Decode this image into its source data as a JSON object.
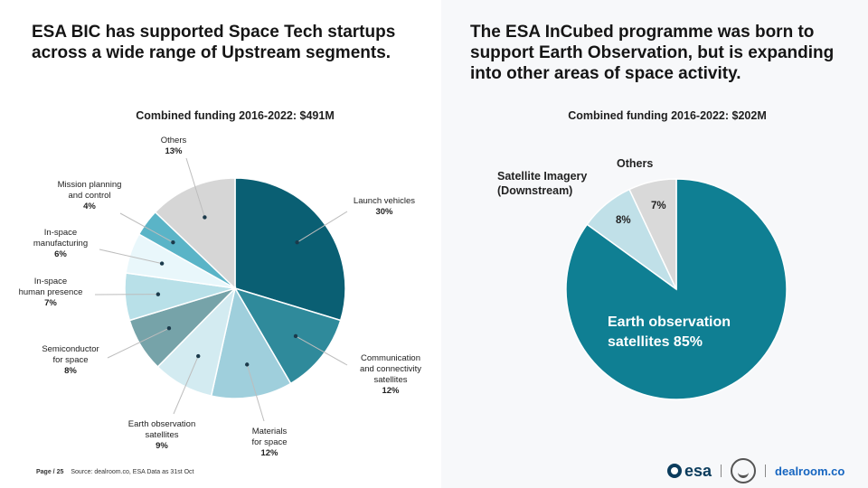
{
  "left": {
    "headline_line1": "ESA BIC has supported Space Tech startups",
    "headline_line2": "across a wide range of Upstream segments."
  },
  "right": {
    "headline_line1": "The ESA InCubed programme was born to",
    "headline_line2": "support Earth Observation, but is expanding",
    "headline_line3": "into other areas of space activity."
  },
  "footer": {
    "page": "Page / 25",
    "source": "Source: dealroom.co, ESA  Data as 31st Oct"
  },
  "logos": {
    "esa": "esa",
    "dealroom": "dealroom.co"
  },
  "chart_data": [
    {
      "type": "pie",
      "title": "Combined funding 2016-2022: $491M",
      "slices": [
        {
          "label_line1": "Launch vehicles",
          "label_line2": "",
          "label_line3": "",
          "value": 30,
          "pct": "30%",
          "color": "#0a5f73"
        },
        {
          "label_line1": "Communication",
          "label_line2": "and connectivity",
          "label_line3": "satellites",
          "value": 12,
          "pct": "12%",
          "color": "#2f8a9b"
        },
        {
          "label_line1": "Materials",
          "label_line2": "for space",
          "label_line3": "",
          "value": 12,
          "pct": "12%",
          "color": "#9fcfdc"
        },
        {
          "label_line1": "Earth observation",
          "label_line2": "satellites",
          "label_line3": "",
          "value": 9,
          "pct": "9%",
          "color": "#d3ebf1"
        },
        {
          "label_line1": "Semiconductor",
          "label_line2": "for space",
          "label_line3": "",
          "value": 8,
          "pct": "8%",
          "color": "#76a3a9"
        },
        {
          "label_line1": "In-space",
          "label_line2": "human presence",
          "label_line3": "",
          "value": 7,
          "pct": "7%",
          "color": "#b8e0e8"
        },
        {
          "label_line1": "In-space",
          "label_line2": "manufacturing",
          "label_line3": "",
          "value": 6,
          "pct": "6%",
          "color": "#e9f7fb"
        },
        {
          "label_line1": "Mission planning",
          "label_line2": "and control",
          "label_line3": "",
          "value": 4,
          "pct": "4%",
          "color": "#5ab4c7"
        },
        {
          "label_line1": "Others",
          "label_line2": "",
          "label_line3": "",
          "value": 13,
          "pct": "13%",
          "color": "#d6d6d6"
        }
      ]
    },
    {
      "type": "pie",
      "title": "Combined funding 2016-2022: $202M",
      "slices": [
        {
          "label_line1": "Earth observation",
          "label_line2": "satellites 85%",
          "value": 85,
          "pct": "",
          "color": "#0f7f93"
        },
        {
          "label_line1": "Satellite Imagery",
          "label_line2": "(Downstream)",
          "value": 8,
          "pct": "8%",
          "color": "#c0e0e8"
        },
        {
          "label_line1": "Others",
          "label_line2": "",
          "value": 7,
          "pct": "7%",
          "color": "#d9d9d9"
        }
      ]
    }
  ]
}
